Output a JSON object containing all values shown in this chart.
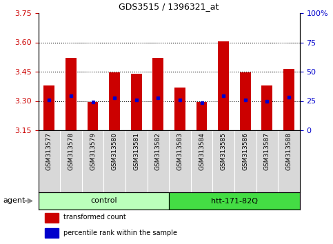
{
  "title": "GDS3515 / 1396321_at",
  "samples": [
    "GSM313577",
    "GSM313578",
    "GSM313579",
    "GSM313580",
    "GSM313581",
    "GSM313582",
    "GSM313583",
    "GSM313584",
    "GSM313585",
    "GSM313586",
    "GSM313587",
    "GSM313588"
  ],
  "bar_values": [
    3.38,
    3.52,
    3.295,
    3.445,
    3.44,
    3.52,
    3.37,
    3.295,
    3.605,
    3.445,
    3.38,
    3.465
  ],
  "percentile_values": [
    3.305,
    3.325,
    3.295,
    3.315,
    3.305,
    3.315,
    3.305,
    3.292,
    3.325,
    3.305,
    3.298,
    3.32
  ],
  "bar_color": "#cc0000",
  "percentile_color": "#0000cc",
  "ymin": 3.15,
  "ymax": 3.75,
  "yticks_left": [
    3.15,
    3.3,
    3.45,
    3.6,
    3.75
  ],
  "yticks_right": [
    0,
    25,
    50,
    75,
    100
  ],
  "yticks_right_labels": [
    "0",
    "25",
    "50",
    "75",
    "100%"
  ],
  "grid_values": [
    3.3,
    3.45,
    3.6
  ],
  "groups": [
    {
      "label": "control",
      "start": 0,
      "end": 5,
      "color": "#bbffbb"
    },
    {
      "label": "htt-171-82Q",
      "start": 6,
      "end": 11,
      "color": "#44dd44"
    }
  ],
  "agent_label": "agent",
  "bg_color": "#ffffff",
  "tick_area_bg": "#d8d8d8",
  "tick_label_color_left": "#cc0000",
  "tick_label_color_right": "#0000cc",
  "bar_width": 0.5,
  "legend_items": [
    {
      "label": "transformed count",
      "color": "#cc0000"
    },
    {
      "label": "percentile rank within the sample",
      "color": "#0000cc"
    }
  ]
}
